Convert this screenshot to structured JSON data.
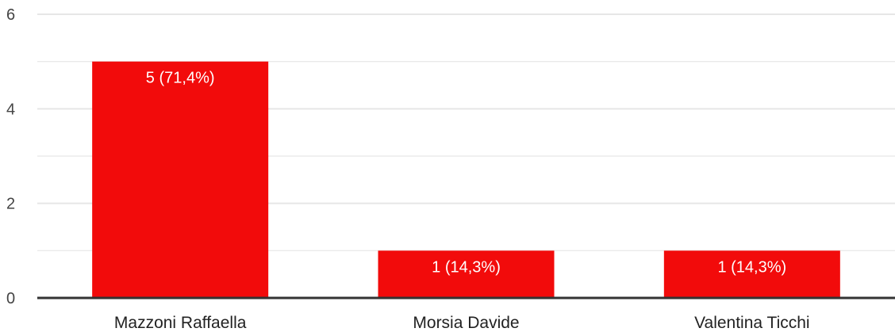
{
  "chart_data": {
    "type": "bar",
    "categories": [
      "Mazzoni Raffaella",
      "Morsia Davide",
      "Valentina Ticchi"
    ],
    "values": [
      5,
      1,
      1
    ],
    "data_labels": [
      "5 (71,4%)",
      "1 (14,3%)",
      "1 (14,3%)"
    ],
    "y_ticks": [
      0,
      2,
      4,
      6
    ],
    "ylim": [
      0,
      6
    ],
    "grid": true,
    "legend": "none",
    "title": "",
    "xlabel": "",
    "ylabel": "",
    "bar_color": "#f20b0b",
    "gridline_color": "#e6e6e6",
    "axis_color": "#333333"
  }
}
